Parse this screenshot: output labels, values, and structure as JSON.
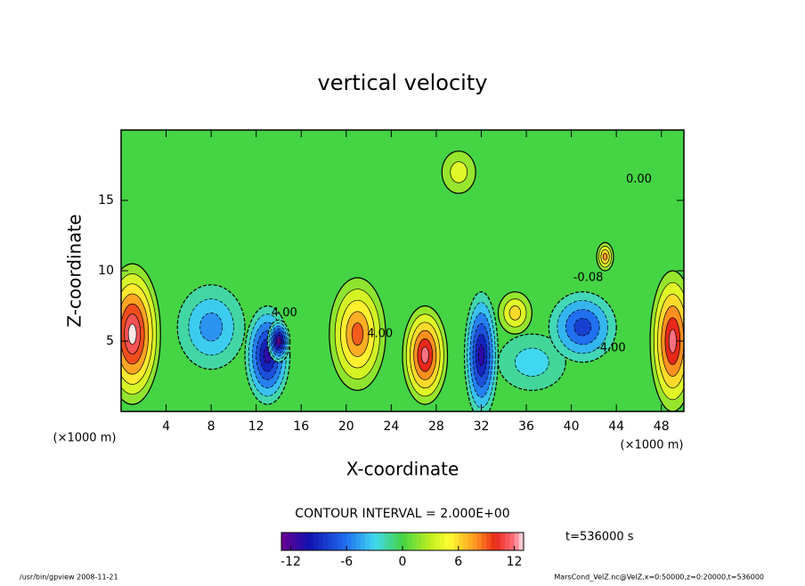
{
  "chart_data": {
    "type": "contour",
    "title": "vertical velocity",
    "x_label": "X-coordinate",
    "y_label": "Z-coordinate",
    "x_unit": "(×1000 m)",
    "y_unit": "(×1000 m)",
    "contour_note": "CONTOUR INTERVAL = 2.000E+00",
    "time_note": "t=536000 s",
    "footer_left": "/usr/bin/gpview  2008-11-21",
    "footer_right": "MarsCond_VelZ.nc@VelZ,x=0:50000,z=0:20000,t=536000",
    "xlim": [
      0,
      50
    ],
    "ylim": [
      0,
      20
    ],
    "xticks": [
      4,
      8,
      12,
      16,
      20,
      24,
      28,
      32,
      36,
      40,
      44,
      48
    ],
    "yticks": [
      5,
      10,
      15
    ],
    "background_color": "#44d444",
    "features": [
      {
        "x": 1,
        "z": 5.5,
        "width": 5,
        "height": 10,
        "value": 13
      },
      {
        "x": 8,
        "z": 6,
        "width": 6,
        "height": 6,
        "value": -5
      },
      {
        "x": 13,
        "z": 4,
        "width": 4,
        "height": 7,
        "value": -11
      },
      {
        "x": 14,
        "z": 5,
        "width": 2,
        "height": 3,
        "value": -13
      },
      {
        "x": 21,
        "z": 5.5,
        "width": 5,
        "height": 8,
        "value": 9
      },
      {
        "x": 27,
        "z": 4,
        "width": 4,
        "height": 7,
        "value": 12
      },
      {
        "x": 32,
        "z": 4,
        "width": 3,
        "height": 9,
        "value": -11
      },
      {
        "x": 36.5,
        "z": 3.5,
        "width": 6,
        "height": 4,
        "value": -3
      },
      {
        "x": 35,
        "z": 7,
        "width": 3,
        "height": 3,
        "value": 6
      },
      {
        "x": 41,
        "z": 6,
        "width": 6,
        "height": 5,
        "value": -8
      },
      {
        "x": 49,
        "z": 5,
        "width": 4,
        "height": 10,
        "value": 12
      },
      {
        "x": 30,
        "z": 17,
        "width": 3,
        "height": 3,
        "value": 4
      },
      {
        "x": 43,
        "z": 11,
        "width": 1.5,
        "height": 2,
        "value": 8
      }
    ],
    "annotations": [
      {
        "text": "0.00",
        "x": 46,
        "z": 16.5
      },
      {
        "text": "-0.08",
        "x": 41.5,
        "z": 9.5
      },
      {
        "text": "4.00",
        "x": 14.5,
        "z": 7
      },
      {
        "text": "-4.00",
        "x": 43.5,
        "z": 4.5
      },
      {
        "text": "4.00",
        "x": 23,
        "z": 5.5
      }
    ],
    "colorbar": {
      "lim": [
        -13,
        13
      ],
      "ticks": [
        -12,
        -6,
        0,
        6,
        12
      ],
      "colormap": [
        [
          -13,
          "#6a0090"
        ],
        [
          -10,
          "#1010b0"
        ],
        [
          -6,
          "#2070f0"
        ],
        [
          -3,
          "#40d8f0"
        ],
        [
          0,
          "#44d444"
        ],
        [
          3,
          "#c0ee20"
        ],
        [
          5,
          "#ffff30"
        ],
        [
          8,
          "#ff9020"
        ],
        [
          10,
          "#e82818"
        ],
        [
          12,
          "#ff7080"
        ],
        [
          13,
          "#ffe8e8"
        ]
      ]
    }
  }
}
